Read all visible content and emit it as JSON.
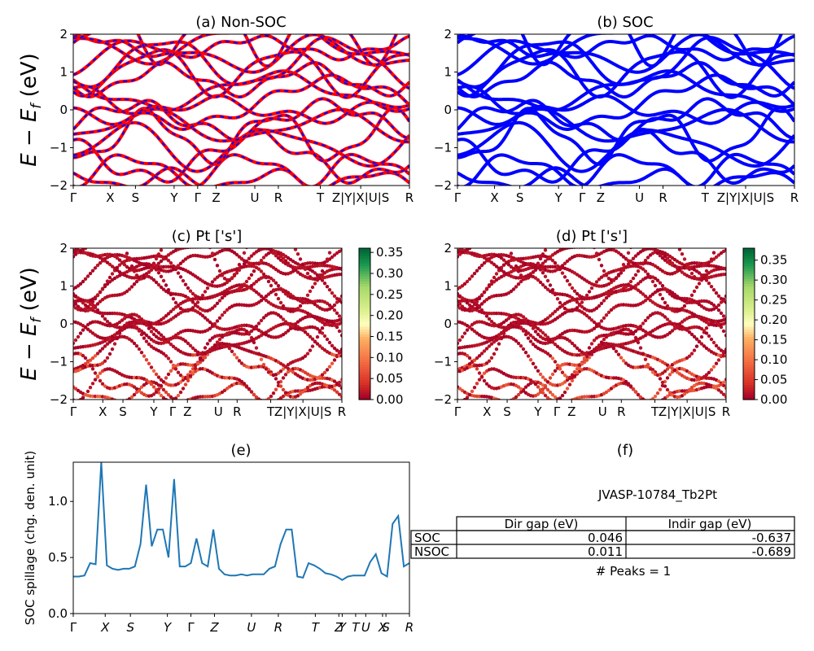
{
  "figure": {
    "ylabel_band": "E − E_f (eV)",
    "ylabel_band_parts": {
      "main": "E − E",
      "sub": "f",
      "unit": " (eV)"
    }
  },
  "panels": {
    "a": {
      "title": "(a) Non-SOC"
    },
    "b": {
      "title": "(b) SOC"
    },
    "c": {
      "title": "(c)  Pt ['s']"
    },
    "d": {
      "title": "(d) Pt ['s']"
    },
    "e": {
      "title": "(e)",
      "ylabel": "SOC spillage (chg. den. unit)"
    },
    "f": {
      "title": "(f)"
    }
  },
  "band_kpath_labels": [
    "Γ",
    "X",
    "S",
    "Y",
    "Γ",
    "Z",
    "U",
    "R",
    "T",
    "Z|",
    "Y|",
    "X|",
    "U|",
    "S",
    "R"
  ],
  "band_kpath_display_ab": [
    "Γ",
    "X",
    "S",
    "Y",
    "Γ",
    "Z",
    "U",
    "R",
    "T",
    "Z|Y|X|U|S",
    "R"
  ],
  "band_kpath_display_cd": [
    "Γ",
    "X",
    "S",
    "Y",
    "Γ",
    "Z",
    "U",
    "R",
    "T",
    "Z|Y|X|U|S",
    "R"
  ],
  "band_yticks": [
    "−2",
    "−1",
    "0",
    "1",
    "2"
  ],
  "colorbar_c": {
    "ticks": [
      "0.00",
      "0.05",
      "0.10",
      "0.15",
      "0.20",
      "0.25",
      "0.30",
      "0.35"
    ],
    "max": 0.36
  },
  "colorbar_d": {
    "ticks": [
      "0.00",
      "0.05",
      "0.10",
      "0.15",
      "0.20",
      "0.25",
      "0.30",
      "0.35"
    ],
    "max": 0.38
  },
  "colors": {
    "nonsoc_band": "#ff0000",
    "nonsoc_dash": "#0000ff",
    "soc_band": "#0000ff",
    "spillage_line": "#1f77b4"
  },
  "spillage_xticks": [
    "Γ",
    "X",
    "S",
    "Y",
    "Γ",
    "Z",
    "U",
    "R",
    "T",
    "Z",
    "Y",
    "T",
    "U",
    "X",
    "S",
    "R"
  ],
  "spillage_yticks": [
    "0.0",
    "0.5",
    "1.0"
  ],
  "table": {
    "caption": "JVASP-10784_Tb2Pt",
    "headers": [
      "",
      "Dir gap (eV)",
      "Indir gap (eV)"
    ],
    "rows": [
      [
        "SOC",
        "0.046",
        "-0.637"
      ],
      [
        "NSOC",
        "0.011",
        "-0.689"
      ]
    ],
    "footer": "# Peaks = 1"
  },
  "chart_data": [
    {
      "type": "line",
      "panel": "a",
      "title": "(a) Non-SOC",
      "ylim": [
        -2,
        2
      ],
      "ylabel": "E − E_f (eV)"
    },
    {
      "type": "line",
      "panel": "b",
      "title": "(b) SOC",
      "ylim": [
        -2,
        2
      ]
    },
    {
      "type": "scatter",
      "panel": "c",
      "title": "(c)  Pt ['s']",
      "ylim": [
        -2,
        2
      ],
      "colorbar_range": [
        0,
        0.36
      ]
    },
    {
      "type": "scatter",
      "panel": "d",
      "title": "(d) Pt ['s']",
      "ylim": [
        -2,
        2
      ],
      "colorbar_range": [
        0,
        0.38
      ]
    },
    {
      "type": "line",
      "panel": "e",
      "title": "(e)",
      "ylabel": "SOC spillage (chg. den. unit)",
      "ylim": [
        0,
        1.35
      ],
      "x": [
        0,
        0.5,
        1,
        1.5,
        2,
        2.5,
        3,
        3.5,
        4,
        4.5,
        5,
        5.5,
        6,
        6.5,
        7,
        7.5,
        8,
        8.5,
        9,
        9.5,
        10,
        10.5,
        11,
        11.5,
        12,
        12.5,
        13,
        13.5,
        14,
        14.5,
        15,
        15.5,
        16,
        16.5,
        17,
        17.5,
        18,
        18.5,
        19,
        19.5,
        20,
        20.5,
        21,
        21.5,
        22,
        22.5,
        23,
        23.5,
        24,
        24.5,
        25,
        25.5,
        26,
        26.5,
        27,
        27.5,
        28,
        28.5,
        29,
        29.5,
        30
      ],
      "y": [
        0.33,
        0.33,
        0.34,
        0.45,
        0.44,
        1.35,
        0.43,
        0.4,
        0.39,
        0.4,
        0.4,
        0.42,
        0.62,
        1.15,
        0.6,
        0.75,
        0.75,
        0.5,
        1.2,
        0.42,
        0.42,
        0.45,
        0.67,
        0.45,
        0.42,
        0.75,
        0.4,
        0.35,
        0.34,
        0.34,
        0.35,
        0.34,
        0.35,
        0.35,
        0.35,
        0.4,
        0.42,
        0.62,
        0.75,
        0.75,
        0.33,
        0.32,
        0.45,
        0.43,
        0.4,
        0.36,
        0.35,
        0.33,
        0.3,
        0.33,
        0.34,
        0.34,
        0.34,
        0.46,
        0.53,
        0.36,
        0.33,
        0.8,
        0.87,
        0.42,
        0.45
      ]
    }
  ]
}
